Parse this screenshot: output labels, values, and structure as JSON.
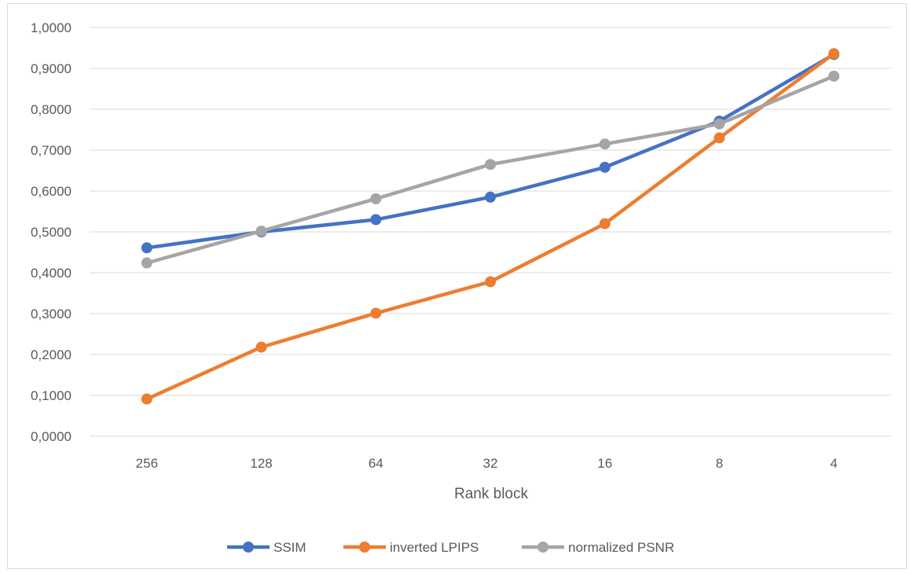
{
  "chart_data": {
    "type": "line",
    "title": "",
    "xlabel": "Rank block",
    "ylabel": "",
    "categories": [
      "256",
      "128",
      "64",
      "32",
      "16",
      "8",
      "4"
    ],
    "ylim": [
      0,
      1
    ],
    "y_ticks": [
      "0,0000",
      "0,1000",
      "0,2000",
      "0,3000",
      "0,4000",
      "0,5000",
      "0,6000",
      "0,7000",
      "0,8000",
      "0,9000",
      "1,0000"
    ],
    "grid": true,
    "legend_position": "bottom",
    "series": [
      {
        "name": "SSIM",
        "color": "#4472c4",
        "values": [
          0.461,
          0.5,
          0.53,
          0.585,
          0.658,
          0.771,
          0.934
        ]
      },
      {
        "name": "inverted LPIPS",
        "color": "#ed7d31",
        "values": [
          0.091,
          0.218,
          0.301,
          0.378,
          0.52,
          0.73,
          0.936
        ]
      },
      {
        "name": "normalized PSNR",
        "color": "#a5a5a5",
        "values": [
          0.424,
          0.502,
          0.581,
          0.665,
          0.715,
          0.764,
          0.881
        ]
      }
    ]
  }
}
